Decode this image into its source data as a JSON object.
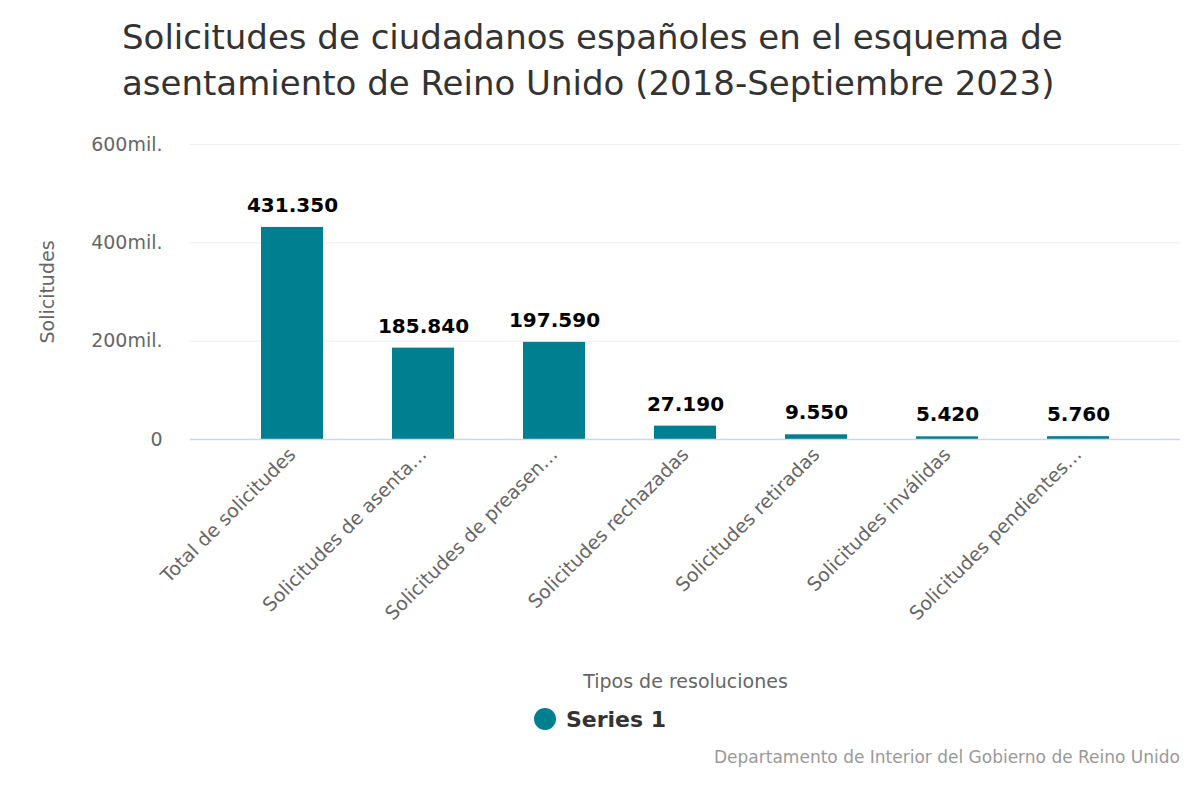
{
  "chart_data": {
    "type": "bar",
    "title": "Solicitudes de ciudadanos españoles en el esquema de asentamiento de Reino Unido (2018-Septiembre 2023)",
    "x_label": "Tipos de resoluciones",
    "y_label": "Solicitudes",
    "categories": [
      "Total de solicitudes",
      "Solicitudes de asenta…",
      "Solicitudes de preasen…",
      "Solicitudes rechazadas",
      "Solicitudes retiradas",
      "Solicitudes inválidas",
      "Solicitudes pendientes…"
    ],
    "series": [
      {
        "name": "Series 1",
        "color": "#007f91",
        "values": [
          431350,
          185840,
          197590,
          27190,
          9550,
          5420,
          5760
        ],
        "value_labels": [
          "431.350",
          "185.840",
          "197.590",
          "27.190",
          "9.550",
          "5.420",
          "5.760"
        ]
      }
    ],
    "ylim": [
      0,
      600000
    ],
    "yticks": [
      0,
      {
        "value": 200000,
        "label": "200mil."
      },
      {
        "value": 400000,
        "label": "400mil."
      },
      {
        "value": 600000,
        "label": "600mil."
      }
    ],
    "grid": true,
    "data_labels": true,
    "legend": "bottom",
    "source": "Departamento de Interior del Gobierno de Reino Unido"
  }
}
